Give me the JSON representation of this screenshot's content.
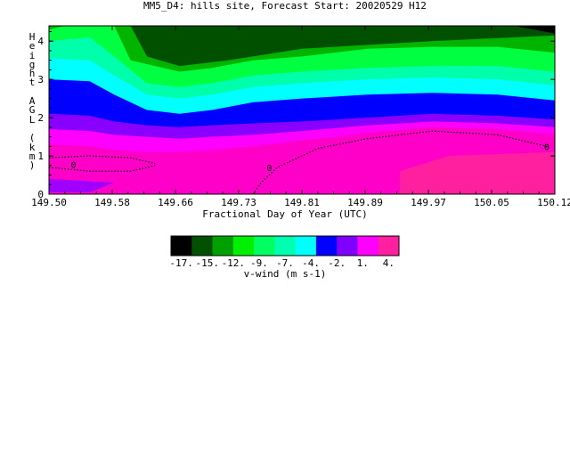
{
  "title": "MM5_D4: hills site,  Forecast Start: 20020529 H12",
  "chart_data": {
    "type": "heatmap",
    "title": "MM5_D4: hills site,  Forecast Start: 20020529 H12",
    "xlabel": "Fractional Day of Year (UTC)",
    "ylabel": "Height AGL (km)",
    "xlim": [
      149.5,
      150.12
    ],
    "ylim": [
      0,
      4.4
    ],
    "xticks": [
      "149.50",
      "149.58",
      "149.66",
      "149.73",
      "149.81",
      "149.89",
      "149.97",
      "150.05",
      "150.12"
    ],
    "yticks": [
      "0",
      "1",
      "2",
      "3",
      "4"
    ],
    "colorbar": {
      "label": "v-wind (m s-1)",
      "ticks": [
        "-17.",
        "-15.",
        "-12.",
        "-9.",
        "-7.",
        "-4.",
        "-2.",
        "1.",
        "4."
      ],
      "colors": [
        "#000000",
        "#005000",
        "#00a000",
        "#00f000",
        "#00ff80",
        "#00ffc0",
        "#00ffff",
        "#0000ff",
        "#8000ff",
        "#ff00ff",
        "#ff20a0"
      ]
    },
    "contour_boundaries": [
      {
        "level": "-15.",
        "x": [
          149.5,
          149.52,
          149.58,
          149.6,
          149.66,
          149.7,
          149.75,
          149.81,
          149.89,
          149.97,
          150.05,
          150.12
        ],
        "y": [
          4.3,
          4.4,
          4.4,
          3.5,
          3.2,
          3.3,
          3.5,
          3.6,
          3.8,
          3.85,
          3.85,
          3.7
        ]
      },
      {
        "level": "-12.",
        "x": [
          149.5,
          149.55,
          149.58,
          149.62,
          149.66,
          149.7,
          149.75,
          149.81,
          149.89,
          149.97,
          150.05,
          150.12
        ],
        "y": [
          4.0,
          4.1,
          3.6,
          2.9,
          2.8,
          2.9,
          3.1,
          3.2,
          3.3,
          3.35,
          3.35,
          3.2
        ]
      },
      {
        "level": "-9.",
        "x": [
          149.5,
          149.55,
          149.58,
          149.62,
          149.66,
          149.7,
          149.75,
          149.81,
          149.89,
          149.97,
          150.05,
          150.12
        ],
        "y": [
          3.55,
          3.5,
          3.1,
          2.6,
          2.5,
          2.6,
          2.8,
          2.9,
          3.0,
          3.05,
          3.0,
          2.85
        ]
      },
      {
        "level": "-7.",
        "x": [
          149.5,
          149.55,
          149.58,
          149.62,
          149.66,
          149.7,
          149.75,
          149.81,
          149.89,
          149.97,
          150.05,
          150.12
        ],
        "y": [
          3.0,
          2.95,
          2.6,
          2.2,
          2.1,
          2.2,
          2.4,
          2.5,
          2.6,
          2.65,
          2.6,
          2.45
        ]
      },
      {
        "level": "-4.",
        "x": [
          149.5,
          149.55,
          149.58,
          149.62,
          149.66,
          149.7,
          149.75,
          149.81,
          149.89,
          149.97,
          150.05,
          150.12
        ],
        "y": [
          2.1,
          2.05,
          1.9,
          1.8,
          1.75,
          1.8,
          1.85,
          1.9,
          2.0,
          2.1,
          2.05,
          1.95
        ]
      },
      {
        "level": "-2.",
        "x": [
          149.5,
          149.55,
          149.58,
          149.62,
          149.66,
          149.7,
          149.75,
          149.81,
          149.89,
          149.97,
          150.05,
          150.12
        ],
        "y": [
          1.7,
          1.65,
          1.55,
          1.5,
          1.45,
          1.5,
          1.55,
          1.65,
          1.8,
          1.9,
          1.85,
          1.75
        ]
      },
      {
        "level": "1.",
        "x": [
          149.5,
          149.55,
          149.58,
          149.62,
          149.66,
          149.7,
          149.75,
          149.81,
          149.89,
          149.97,
          150.05,
          150.12
        ],
        "y": [
          1.3,
          1.25,
          1.15,
          1.1,
          1.1,
          1.15,
          1.25,
          1.4,
          1.6,
          1.75,
          1.7,
          1.55
        ]
      }
    ],
    "zero_contour_labels": [
      "0",
      "0",
      "0"
    ]
  }
}
